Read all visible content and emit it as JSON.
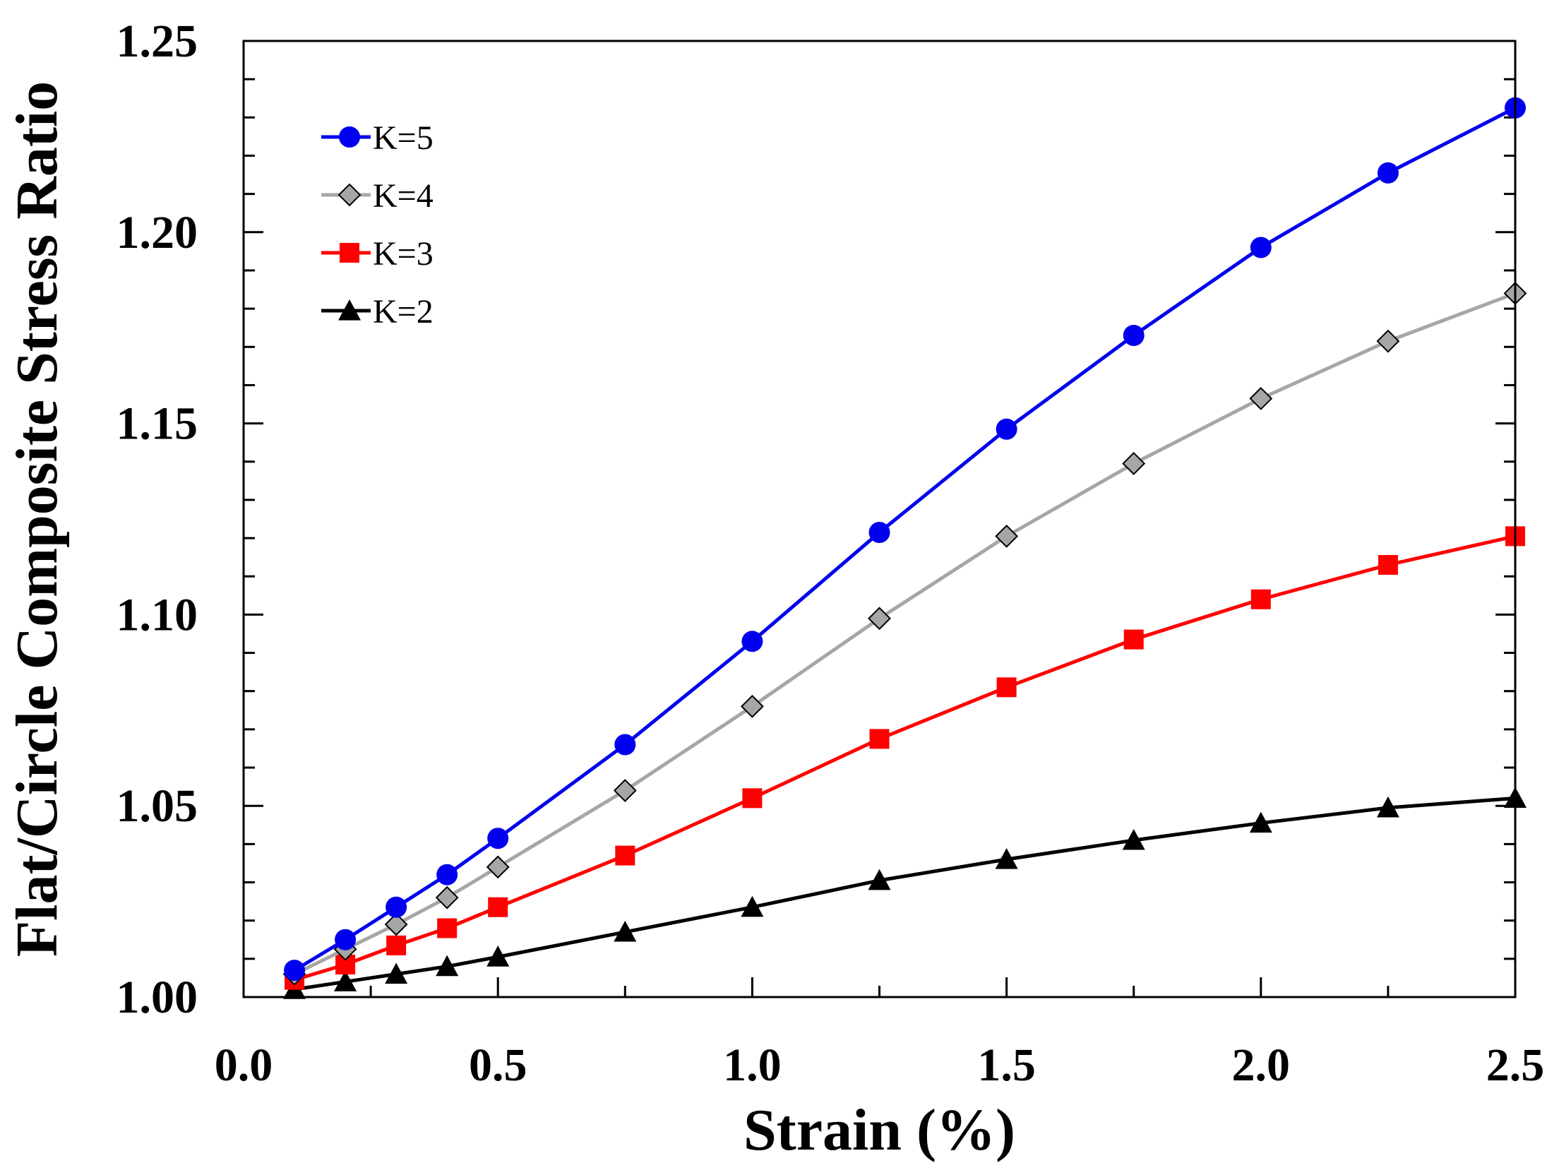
{
  "chart_data": {
    "type": "line",
    "title": "",
    "xlabel": "Strain (%)",
    "ylabel": "Flat/Circle Composite Stress Ratio",
    "xlim": [
      0.0,
      2.5
    ],
    "ylim": [
      1.0,
      1.25
    ],
    "xticks": [
      "0.0",
      "0.5",
      "1.0",
      "1.5",
      "2.0",
      "2.5"
    ],
    "yticks": [
      "1.00",
      "1.05",
      "1.10",
      "1.15",
      "1.20",
      "1.25"
    ],
    "x": [
      0.1,
      0.2,
      0.3,
      0.4,
      0.5,
      0.75,
      1.0,
      1.25,
      1.5,
      1.75,
      2.0,
      2.25,
      2.5
    ],
    "grid": false,
    "legend_position": "top-left",
    "series": [
      {
        "name": "K=5",
        "color": "#0000ee",
        "marker": "circle",
        "values": [
          1.007,
          1.015,
          1.0235,
          1.032,
          1.0415,
          1.066,
          1.093,
          1.1215,
          1.1485,
          1.173,
          1.196,
          1.2155,
          1.2325
        ]
      },
      {
        "name": "K=4",
        "color": "#a6a6a6",
        "marker": "diamond",
        "values": [
          1.006,
          1.0125,
          1.019,
          1.026,
          1.034,
          1.054,
          1.076,
          1.099,
          1.1205,
          1.1395,
          1.1565,
          1.1715,
          1.184
        ]
      },
      {
        "name": "K=3",
        "color": "#ff0000",
        "marker": "square",
        "values": [
          1.0045,
          1.0085,
          1.0135,
          1.018,
          1.0235,
          1.037,
          1.052,
          1.0675,
          1.081,
          1.0935,
          1.104,
          1.113,
          1.1205
        ]
      },
      {
        "name": "K=2",
        "color": "#000000",
        "marker": "triangle",
        "values": [
          1.002,
          1.004,
          1.006,
          1.008,
          1.0105,
          1.017,
          1.0235,
          1.0305,
          1.036,
          1.041,
          1.0455,
          1.0495,
          1.052
        ]
      }
    ]
  }
}
